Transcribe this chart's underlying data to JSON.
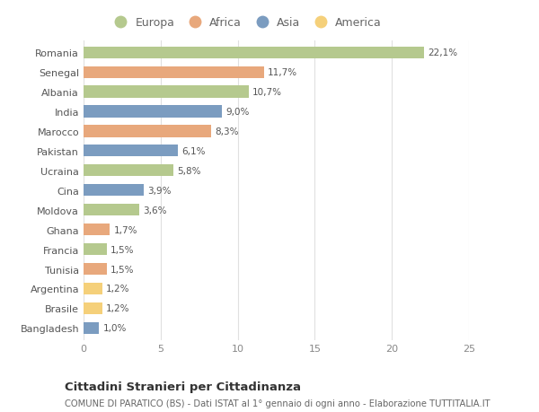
{
  "countries": [
    "Romania",
    "Senegal",
    "Albania",
    "India",
    "Marocco",
    "Pakistan",
    "Ucraina",
    "Cina",
    "Moldova",
    "Ghana",
    "Francia",
    "Tunisia",
    "Argentina",
    "Brasile",
    "Bangladesh"
  ],
  "values": [
    22.1,
    11.7,
    10.7,
    9.0,
    8.3,
    6.1,
    5.8,
    3.9,
    3.6,
    1.7,
    1.5,
    1.5,
    1.2,
    1.2,
    1.0
  ],
  "labels": [
    "22,1%",
    "11,7%",
    "10,7%",
    "9,0%",
    "8,3%",
    "6,1%",
    "5,8%",
    "3,9%",
    "3,6%",
    "1,7%",
    "1,5%",
    "1,5%",
    "1,2%",
    "1,2%",
    "1,0%"
  ],
  "continents": [
    "Europa",
    "Africa",
    "Europa",
    "Asia",
    "Africa",
    "Asia",
    "Europa",
    "Asia",
    "Europa",
    "Africa",
    "Europa",
    "Africa",
    "America",
    "America",
    "Asia"
  ],
  "colors": {
    "Europa": "#b5c98e",
    "Africa": "#e8a87c",
    "Asia": "#7b9cc0",
    "America": "#f5d07a"
  },
  "legend_order": [
    "Europa",
    "Africa",
    "Asia",
    "America"
  ],
  "title": "Cittadini Stranieri per Cittadinanza",
  "subtitle": "COMUNE DI PARATICO (BS) - Dati ISTAT al 1° gennaio di ogni anno - Elaborazione TUTTITALIA.IT",
  "xlim": [
    0,
    25
  ],
  "xticks": [
    0,
    5,
    10,
    15,
    20,
    25
  ],
  "background_color": "#ffffff",
  "grid_color": "#e0e0e0"
}
